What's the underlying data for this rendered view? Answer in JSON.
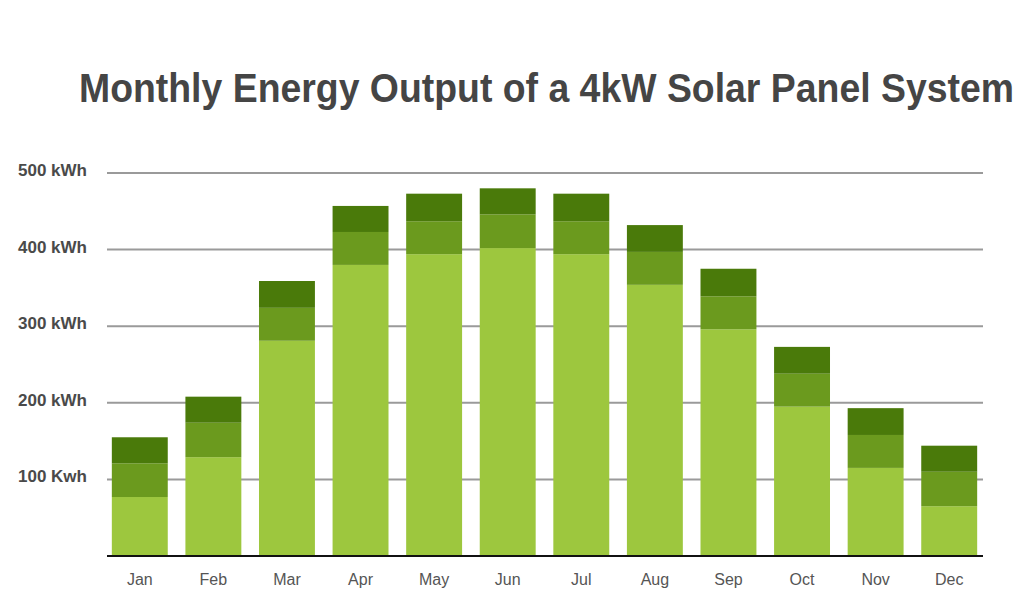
{
  "chart_data": {
    "type": "bar",
    "title": "Monthly Energy Output of a 4kW Solar Panel System",
    "categories": [
      "Jan",
      "Feb",
      "Mar",
      "Apr",
      "May",
      "Jun",
      "Jul",
      "Aug",
      "Sep",
      "Oct",
      "Nov",
      "Dec"
    ],
    "series": [
      {
        "color": "#9dc73e",
        "values": [
          77,
          129,
          281,
          380,
          394,
          402,
          394,
          354,
          296,
          195,
          115,
          65
        ]
      },
      {
        "color": "#6b9a1e",
        "values": [
          44,
          45,
          43,
          43,
          43,
          44,
          43,
          43,
          43,
          43,
          43,
          45
        ]
      },
      {
        "color": "#4a7a0a",
        "values": [
          34,
          34,
          35,
          34,
          36,
          34,
          36,
          35,
          36,
          35,
          35,
          34
        ]
      }
    ],
    "stacked": true,
    "ylim": [
      0,
      500
    ],
    "yticks": [
      {
        "value": 100,
        "label": "100 Kwh"
      },
      {
        "value": 200,
        "label": "200 kWh"
      },
      {
        "value": 300,
        "label": "300 kWh"
      },
      {
        "value": 400,
        "label": "400 kWh"
      },
      {
        "value": 500,
        "label": "500 kWh"
      }
    ],
    "grid": true
  }
}
